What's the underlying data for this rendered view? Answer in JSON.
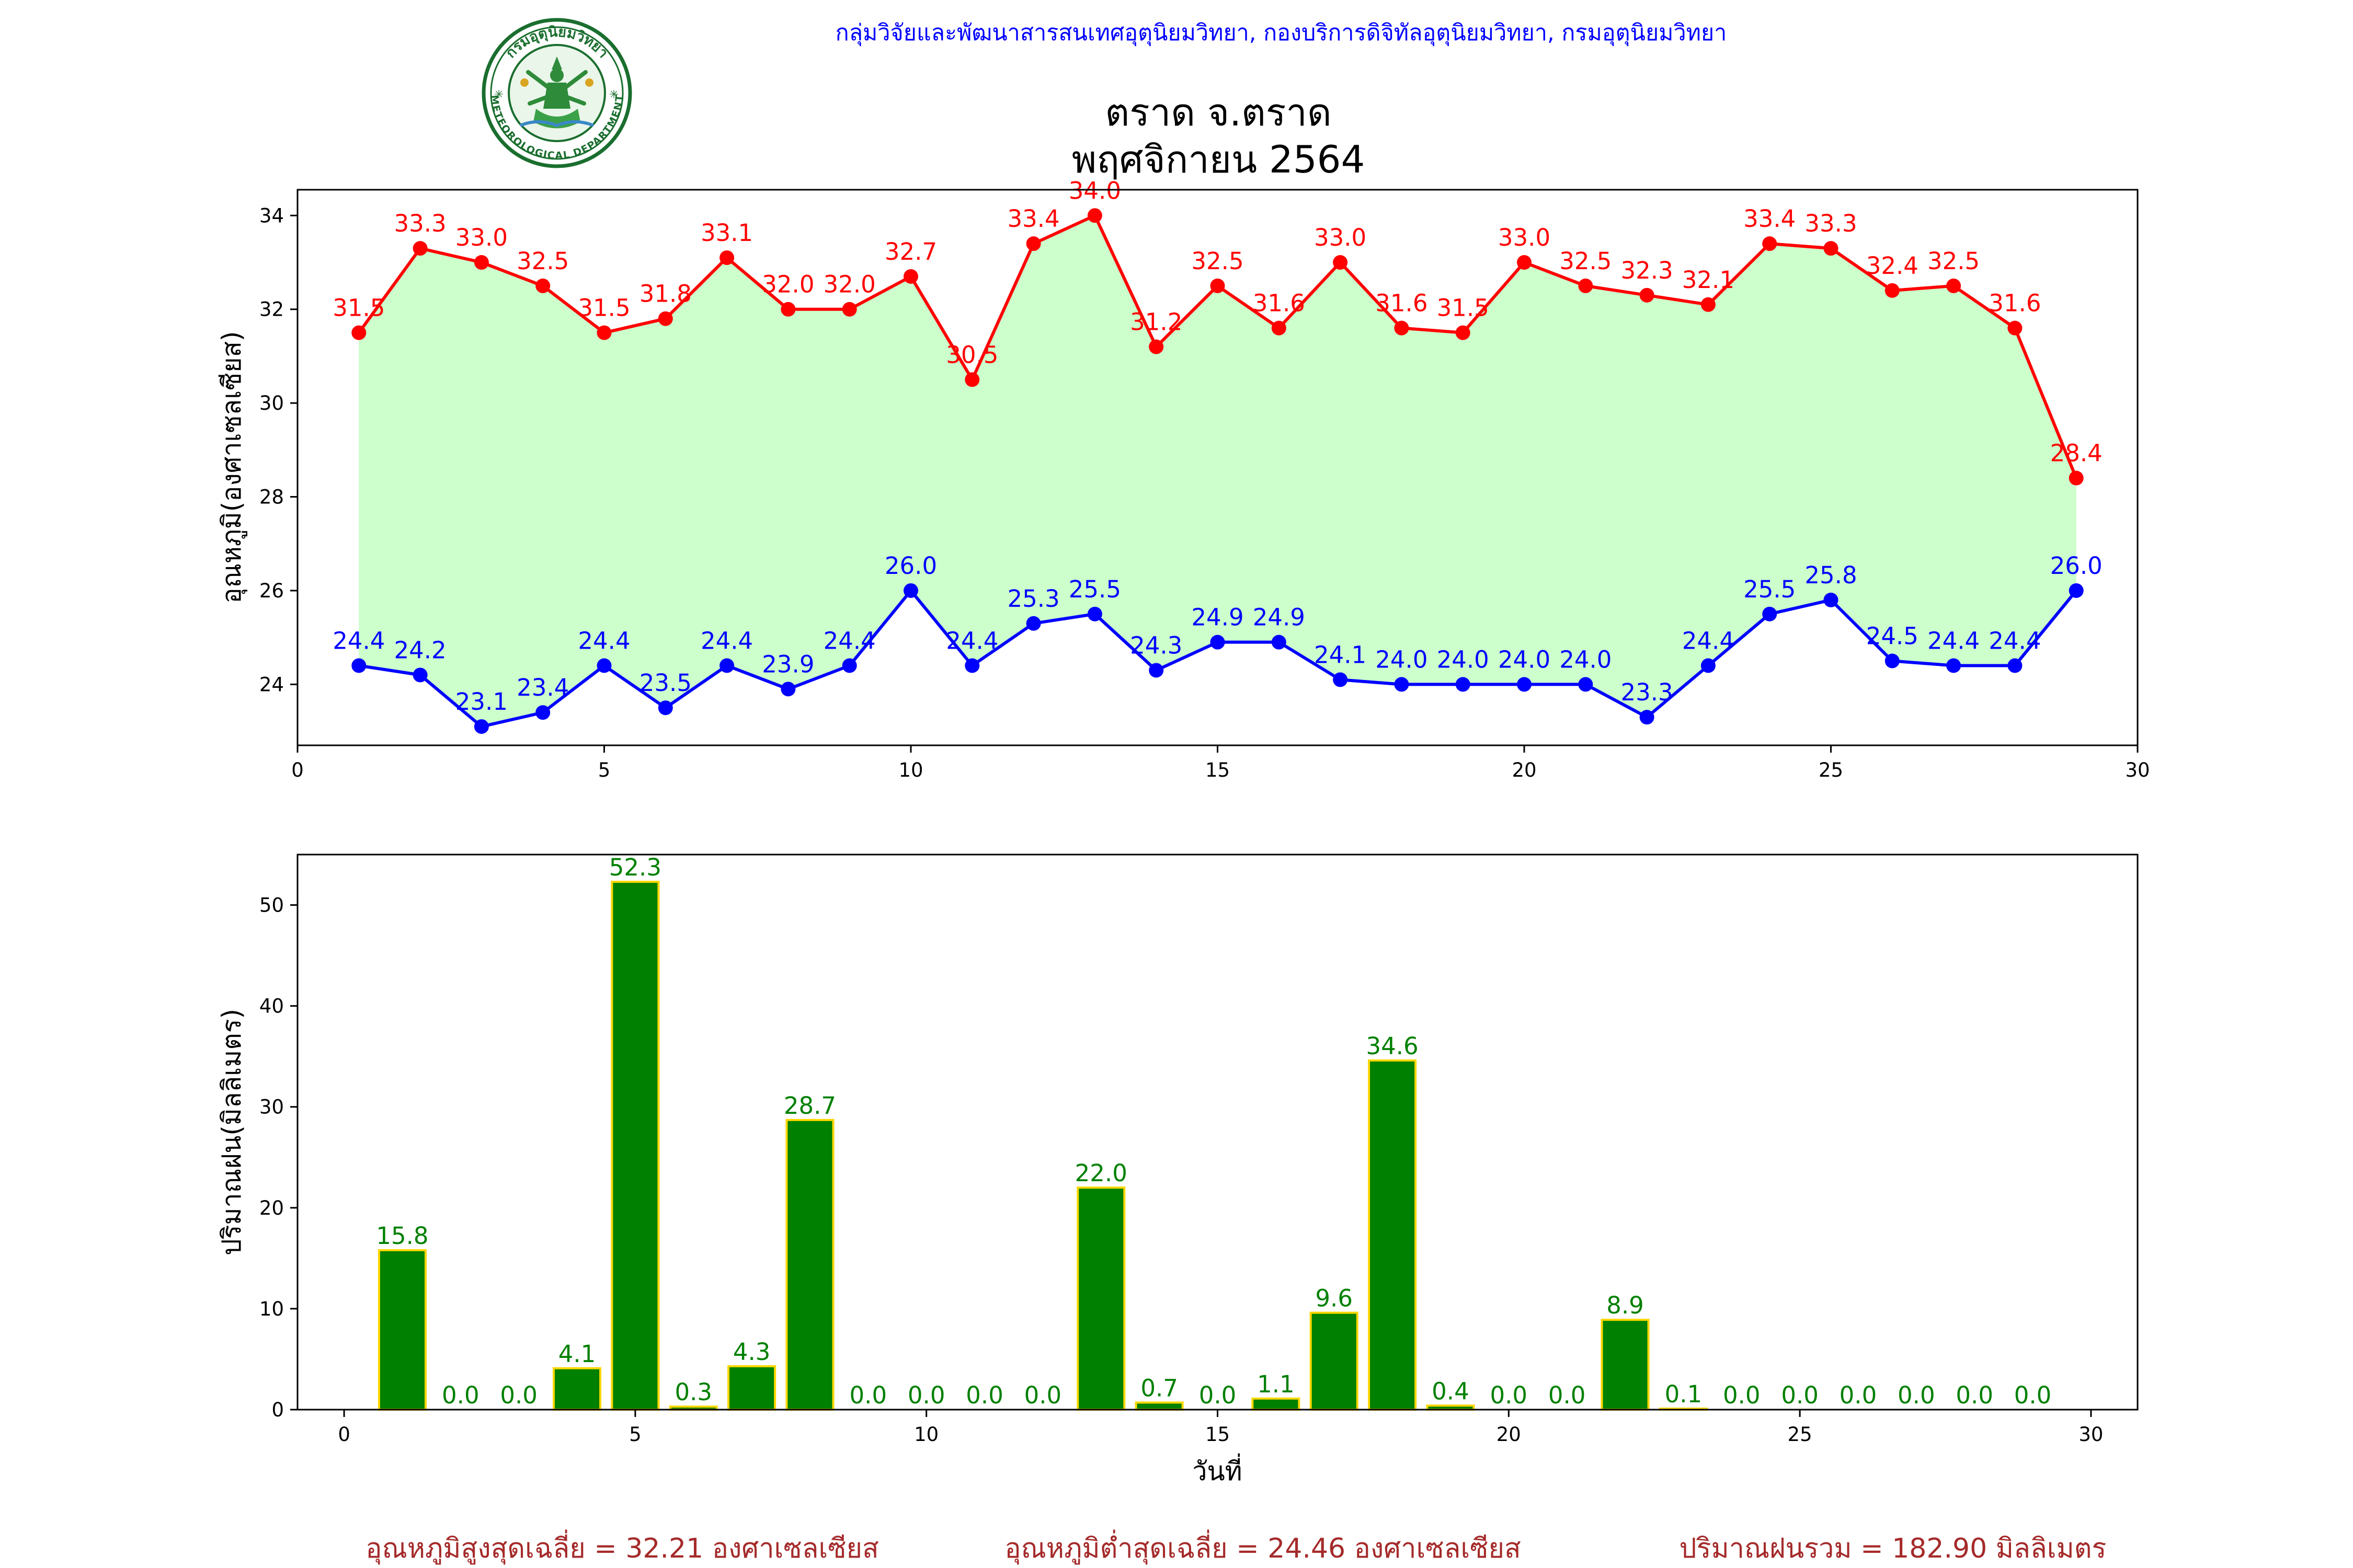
{
  "header": {
    "agency": "กลุ่มวิจัยและพัฒนาสารสนเทศอุตุนิยมวิทยา, กองบริการดิจิทัลอุตุนิยมวิทยา, กรมอุตุนิยมวิทยา",
    "agency_color": "#0000ff",
    "logo_top_text": "กรมอุตุนิยมวิทยา",
    "logo_bottom_text": "METEOROLOGICAL DEPARTMENT"
  },
  "chart_data": [
    {
      "type": "line",
      "title": "ตราด จ.ตราด",
      "subtitle": "พฤศจิกายน 2564",
      "xlabel": "",
      "ylabel": "อุณหภูมิ(องศาเซลเซียส)",
      "xlim": [
        0,
        30
      ],
      "ylim": [
        22.7,
        34.55
      ],
      "xticks": [
        0,
        5,
        10,
        15,
        20,
        25,
        30
      ],
      "yticks": [
        24,
        26,
        28,
        30,
        32,
        34
      ],
      "grid": false,
      "fill_between": {
        "color": "#ccffcc"
      },
      "x": [
        1,
        2,
        3,
        4,
        5,
        6,
        7,
        8,
        9,
        10,
        11,
        12,
        13,
        14,
        15,
        16,
        17,
        18,
        19,
        20,
        21,
        22,
        23,
        24,
        25,
        26,
        27,
        28,
        29
      ],
      "series": [
        {
          "color": "#ff0000",
          "values": [
            31.5,
            33.3,
            33.0,
            32.5,
            31.5,
            31.8,
            33.1,
            32.0,
            32.0,
            32.7,
            30.5,
            33.4,
            34.0,
            31.2,
            32.5,
            31.6,
            33.0,
            31.6,
            31.5,
            33.0,
            32.5,
            32.3,
            32.1,
            33.4,
            33.3,
            32.4,
            32.5,
            31.6,
            28.4
          ]
        },
        {
          "color": "#0000ff",
          "values": [
            24.4,
            24.2,
            23.1,
            23.4,
            24.4,
            23.5,
            24.4,
            23.9,
            24.4,
            26.0,
            24.4,
            25.3,
            25.5,
            24.3,
            24.9,
            24.9,
            24.1,
            24.0,
            24.0,
            24.0,
            24.0,
            23.3,
            24.4,
            25.5,
            25.8,
            24.5,
            24.4,
            24.4,
            26.0
          ]
        }
      ]
    },
    {
      "type": "bar",
      "xlabel": "วันที่",
      "ylabel": "ปริมาณฝน(มิลลิเมตร)",
      "xlim": [
        -0.8,
        30.8
      ],
      "ylim": [
        0,
        55
      ],
      "xticks": [
        0,
        5,
        10,
        15,
        20,
        25,
        30
      ],
      "yticks": [
        0,
        10,
        20,
        30,
        40,
        50
      ],
      "grid": false,
      "bar_color": "#008000",
      "bar_edge_color": "#ffd700",
      "label_color": "#008000",
      "x": [
        1,
        2,
        3,
        4,
        5,
        6,
        7,
        8,
        9,
        10,
        11,
        12,
        13,
        14,
        15,
        16,
        17,
        18,
        19,
        20,
        21,
        22,
        23,
        24,
        25,
        26,
        27,
        28,
        29
      ],
      "values": [
        15.8,
        0.0,
        0.0,
        4.1,
        52.3,
        0.3,
        4.3,
        28.7,
        0.0,
        0.0,
        0.0,
        0.0,
        22.0,
        0.7,
        0.0,
        1.1,
        9.6,
        34.6,
        0.4,
        0.0,
        0.0,
        8.9,
        0.1,
        0.0,
        0.0,
        0.0,
        0.0,
        0.0,
        0.0
      ]
    }
  ],
  "summary": {
    "color": "#a52a2a",
    "max_avg": "อุณหภูมิสูงสุดเฉลี่ย = 32.21 องศาเซลเซียส",
    "min_avg": "อุณหภูมิต่ำสุดเฉลี่ย = 24.46 องศาเซลเซียส",
    "rain_total": "ปริมาณฝนรวม = 182.90 มิลลิเมตร"
  }
}
